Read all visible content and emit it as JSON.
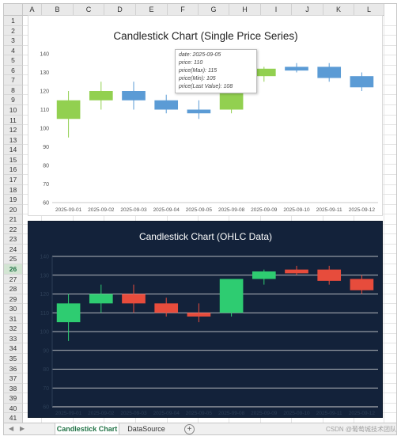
{
  "columns": [
    "A",
    "B",
    "C",
    "D",
    "E",
    "F",
    "G",
    "H",
    "I",
    "J",
    "K",
    "L"
  ],
  "rows": [
    "1",
    "2",
    "3",
    "4",
    "5",
    "6",
    "7",
    "8",
    "9",
    "10",
    "11",
    "12",
    "13",
    "14",
    "15",
    "16",
    "17",
    "18",
    "19",
    "20",
    "21",
    "22",
    "23",
    "24",
    "25",
    "26",
    "27",
    "28",
    "29",
    "30",
    "31",
    "32",
    "33",
    "34",
    "35",
    "36",
    "37",
    "38",
    "39",
    "40",
    "41"
  ],
  "active_row": "26",
  "sheet_tabs": [
    {
      "label": "Candlestick Chart",
      "active": true
    },
    {
      "label": "DataSource",
      "active": false
    }
  ],
  "add_sheet_symbol": "+",
  "nav_prev_symbol": "◀",
  "nav_next_symbol": "▶",
  "watermark": "CSDN @葡萄城技术团队",
  "tooltip": {
    "lines": [
      "date: 2025-09-05",
      "price: 110",
      "price(Max): 115",
      "price(Min): 105",
      "price(Last Value): 108"
    ]
  },
  "colors": {
    "up_light": "#92d050",
    "down_light": "#5b9bd5",
    "up_dark": "#2ecc71",
    "down_dark": "#e74c3c",
    "dark_bg": "#13223a"
  },
  "chart_data": [
    {
      "type": "candlestick",
      "title": "Candlestick Chart (Single Price Series)",
      "categories": [
        "2025-09-01",
        "2025-09-02",
        "2025-09-03",
        "2025-09-04",
        "2025-09-05",
        "2025-09-08",
        "2025-09-09",
        "2025-09-10",
        "2025-09-11",
        "2025-09-12"
      ],
      "open": [
        105,
        115,
        120,
        115,
        110,
        110,
        128,
        133,
        133,
        128
      ],
      "high": [
        120,
        125,
        125,
        118,
        115,
        128,
        133,
        135,
        135,
        130
      ],
      "low": [
        95,
        110,
        110,
        108,
        105,
        108,
        125,
        130,
        125,
        120
      ],
      "close": [
        115,
        120,
        115,
        110,
        108,
        128,
        132,
        131,
        127,
        122
      ],
      "ylim": [
        60,
        140
      ],
      "yticks": [
        60,
        70,
        80,
        90,
        100,
        110,
        120,
        130,
        140
      ],
      "grid": false,
      "theme": "light"
    },
    {
      "type": "candlestick",
      "title": "Candlestick Chart (OHLC Data)",
      "categories": [
        "2025-09-01",
        "2025-09-02",
        "2025-09-03",
        "2025-09-04",
        "2025-09-05",
        "2025-09-08",
        "2025-09-09",
        "2025-09-10",
        "2025-09-11",
        "2025-09-12"
      ],
      "open": [
        105,
        115,
        120,
        115,
        110,
        110,
        128,
        133,
        133,
        128
      ],
      "high": [
        120,
        125,
        125,
        118,
        115,
        128,
        133,
        135,
        135,
        130
      ],
      "low": [
        95,
        110,
        110,
        108,
        105,
        108,
        125,
        130,
        125,
        120
      ],
      "close": [
        115,
        120,
        115,
        110,
        108,
        128,
        132,
        131,
        127,
        122
      ],
      "ylim": [
        60,
        140
      ],
      "yticks": [
        60,
        70,
        80,
        90,
        100,
        110,
        120,
        130,
        140
      ],
      "grid": true,
      "theme": "dark"
    }
  ]
}
